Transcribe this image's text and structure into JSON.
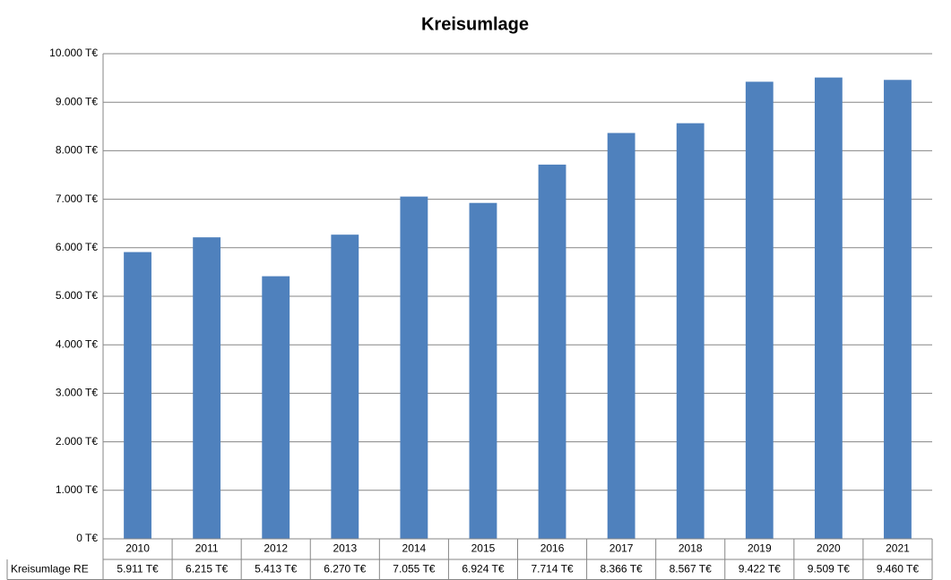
{
  "chart_data": {
    "type": "bar",
    "title": "Kreisumlage",
    "categories": [
      "2010",
      "2011",
      "2012",
      "2013",
      "2014",
      "2015",
      "2016",
      "2017",
      "2018",
      "2019",
      "2020",
      "2021"
    ],
    "series": [
      {
        "name": "Kreisumlage RE",
        "color": "#4f81bd",
        "values": [
          5911,
          6215,
          5413,
          6270,
          7055,
          6924,
          7714,
          8366,
          8567,
          9422,
          9509,
          9460
        ],
        "value_labels": [
          "5.911 T€",
          "6.215 T€",
          "5.413 T€",
          "6.270 T€",
          "7.055 T€",
          "6.924 T€",
          "7.714 T€",
          "8.366 T€",
          "8.567 T€",
          "9.422 T€",
          "9.509 T€",
          "9.460 T€"
        ]
      }
    ],
    "ylim": [
      0,
      10000
    ],
    "yticks": [
      {
        "value": 0,
        "label": "0 T€"
      },
      {
        "value": 1000,
        "label": "1.000 T€"
      },
      {
        "value": 2000,
        "label": "2.000 T€"
      },
      {
        "value": 3000,
        "label": "3.000 T€"
      },
      {
        "value": 4000,
        "label": "4.000 T€"
      },
      {
        "value": 5000,
        "label": "5.000 T€"
      },
      {
        "value": 6000,
        "label": "6.000 T€"
      },
      {
        "value": 7000,
        "label": "7.000 T€"
      },
      {
        "value": 8000,
        "label": "8.000 T€"
      },
      {
        "value": 9000,
        "label": "9.000 T€"
      },
      {
        "value": 10000,
        "label": "10.000 T€"
      }
    ],
    "grid": true
  }
}
